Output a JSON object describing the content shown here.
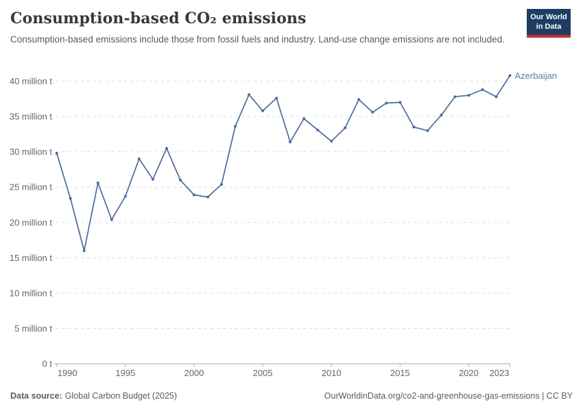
{
  "header": {
    "title": "Consumption-based CO₂ emissions",
    "subtitle": "Consumption-based emissions include those from fossil fuels and industry. Land-use change emissions are not included.",
    "logo": {
      "line1": "Our World",
      "line2": "in Data",
      "bg_color": "#1d3d63",
      "bar_color": "#c7302f"
    }
  },
  "footer": {
    "source_label": "Data source:",
    "source_value": "Global Carbon Budget (2025)",
    "link": "OurWorldinData.org/co2-and-greenhouse-gas-emissions | CC BY"
  },
  "chart_data": {
    "type": "line",
    "title": "Consumption-based CO₂ emissions",
    "entity": "Azerbaijan",
    "unit": "million t",
    "xlabel": "",
    "ylabel": "",
    "ylim": [
      0,
      40
    ],
    "xlim": [
      1990,
      2023
    ],
    "grid": "horizontal-dashed",
    "legend_position": "end-of-line-label",
    "line_color": "#4C6A9C",
    "entity_label_color": "#5b7aa9",
    "x": [
      1990,
      1991,
      1992,
      1993,
      1994,
      1995,
      1996,
      1997,
      1998,
      1999,
      2000,
      2001,
      2002,
      2003,
      2004,
      2005,
      2006,
      2007,
      2008,
      2009,
      2010,
      2011,
      2012,
      2013,
      2014,
      2015,
      2016,
      2017,
      2018,
      2019,
      2020,
      2021,
      2022,
      2023
    ],
    "values": [
      29.8,
      23.4,
      16.0,
      25.6,
      20.4,
      23.7,
      29.0,
      26.1,
      30.5,
      26.0,
      23.9,
      23.6,
      25.4,
      33.6,
      38.1,
      35.8,
      37.6,
      31.4,
      34.7,
      33.1,
      31.5,
      33.4,
      37.4,
      35.6,
      36.9,
      37.0,
      33.5,
      33.0,
      35.2,
      37.8,
      38.0,
      38.8,
      37.8,
      40.8
    ],
    "xticks": [
      1990,
      1995,
      2000,
      2005,
      2010,
      2015,
      2020,
      2023
    ],
    "yticks": [
      {
        "v": 0,
        "label": "0 t"
      },
      {
        "v": 5,
        "label": "5 million t"
      },
      {
        "v": 10,
        "label": "10 million t"
      },
      {
        "v": 15,
        "label": "15 million t"
      },
      {
        "v": 20,
        "label": "20 million t"
      },
      {
        "v": 25,
        "label": "25 million t"
      },
      {
        "v": 30,
        "label": "30 million t"
      },
      {
        "v": 35,
        "label": "35 million t"
      },
      {
        "v": 40,
        "label": "40 million t"
      }
    ]
  }
}
